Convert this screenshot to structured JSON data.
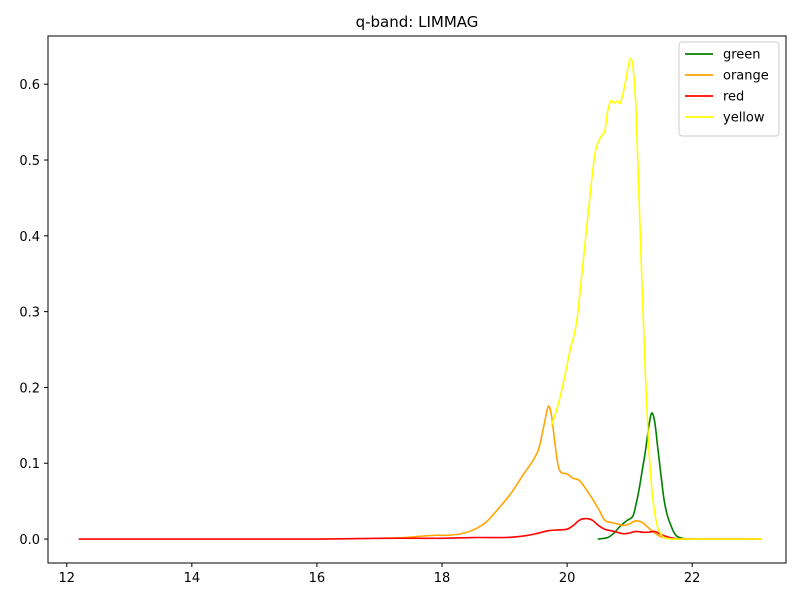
{
  "chart_data": {
    "type": "line",
    "title": "q-band: LIMMAG",
    "xlabel": "",
    "ylabel": "",
    "xlim": [
      11.7,
      23.5
    ],
    "ylim": [
      -0.0316,
      0.6636
    ],
    "xticks": [
      12,
      14,
      16,
      18,
      20,
      22
    ],
    "yticks": [
      0.0,
      0.1,
      0.2,
      0.3,
      0.4,
      0.5,
      0.6
    ],
    "xtick_labels": [
      "12",
      "14",
      "16",
      "18",
      "20",
      "22"
    ],
    "ytick_labels": [
      "0.0",
      "0.1",
      "0.2",
      "0.3",
      "0.4",
      "0.5",
      "0.6"
    ],
    "grid": false,
    "legend_position": "top-right",
    "series": [
      {
        "name": "green",
        "color": "#008000",
        "x": [
          20.5,
          20.65,
          20.75,
          20.85,
          20.95,
          21.05,
          21.1,
          21.15,
          21.2,
          21.25,
          21.3,
          21.35,
          21.4,
          21.45,
          21.5,
          21.55,
          21.6,
          21.65,
          21.7,
          21.75,
          21.8,
          21.9,
          22.0
        ],
        "y": [
          0.0,
          0.002,
          0.008,
          0.017,
          0.024,
          0.03,
          0.045,
          0.065,
          0.09,
          0.115,
          0.145,
          0.166,
          0.155,
          0.12,
          0.085,
          0.052,
          0.032,
          0.02,
          0.01,
          0.004,
          0.002,
          0.0,
          0.0
        ]
      },
      {
        "name": "orange",
        "color": "#ffa500",
        "x": [
          17.0,
          17.4,
          17.7,
          17.9,
          18.1,
          18.3,
          18.5,
          18.7,
          18.9,
          19.1,
          19.3,
          19.45,
          19.55,
          19.63,
          19.7,
          19.75,
          19.8,
          19.85,
          19.9,
          20.0,
          20.1,
          20.2,
          20.35,
          20.5,
          20.6,
          20.7,
          20.8,
          20.9,
          21.0,
          21.1,
          21.2,
          21.3,
          21.4,
          21.5,
          21.6,
          21.7,
          21.8,
          22.0
        ],
        "y": [
          0.001,
          0.002,
          0.004,
          0.005,
          0.005,
          0.007,
          0.012,
          0.022,
          0.04,
          0.06,
          0.085,
          0.103,
          0.12,
          0.15,
          0.175,
          0.163,
          0.13,
          0.1,
          0.088,
          0.086,
          0.08,
          0.077,
          0.06,
          0.04,
          0.025,
          0.022,
          0.02,
          0.018,
          0.02,
          0.024,
          0.022,
          0.015,
          0.008,
          0.003,
          0.001,
          0.0,
          0.0,
          0.0
        ]
      },
      {
        "name": "red",
        "color": "#ff0000",
        "x": [
          12.2,
          13.0,
          14.0,
          15.0,
          16.0,
          17.0,
          18.0,
          18.5,
          19.0,
          19.3,
          19.5,
          19.7,
          19.85,
          20.0,
          20.1,
          20.2,
          20.3,
          20.4,
          20.5,
          20.6,
          20.7,
          20.8,
          20.9,
          21.0,
          21.1,
          21.2,
          21.3,
          21.4,
          21.5,
          21.6,
          21.7,
          21.8,
          22.0,
          23.1
        ],
        "y": [
          0.0,
          0.0,
          0.0,
          0.0,
          0.0,
          0.001,
          0.001,
          0.002,
          0.002,
          0.004,
          0.007,
          0.011,
          0.012,
          0.013,
          0.018,
          0.025,
          0.027,
          0.025,
          0.018,
          0.013,
          0.011,
          0.009,
          0.007,
          0.008,
          0.01,
          0.009,
          0.009,
          0.01,
          0.006,
          0.003,
          0.001,
          0.0,
          0.0,
          0.0
        ]
      },
      {
        "name": "yellow",
        "color": "#ffff00",
        "x": [
          19.75,
          19.85,
          19.95,
          20.05,
          20.15,
          20.25,
          20.35,
          20.45,
          20.55,
          20.6,
          20.65,
          20.7,
          20.75,
          20.8,
          20.85,
          20.9,
          20.95,
          21.0,
          21.05,
          21.1,
          21.15,
          21.2,
          21.25,
          21.3,
          21.35,
          21.4,
          21.45,
          21.5,
          21.55,
          21.6,
          21.7,
          21.8,
          22.0,
          22.5,
          23.1
        ],
        "y": [
          0.15,
          0.175,
          0.21,
          0.25,
          0.285,
          0.36,
          0.44,
          0.51,
          0.532,
          0.537,
          0.565,
          0.578,
          0.575,
          0.578,
          0.575,
          0.59,
          0.61,
          0.632,
          0.625,
          0.57,
          0.45,
          0.33,
          0.22,
          0.13,
          0.07,
          0.035,
          0.015,
          0.006,
          0.002,
          0.001,
          0.0,
          0.0,
          0.0,
          0.0,
          0.0
        ]
      }
    ]
  }
}
